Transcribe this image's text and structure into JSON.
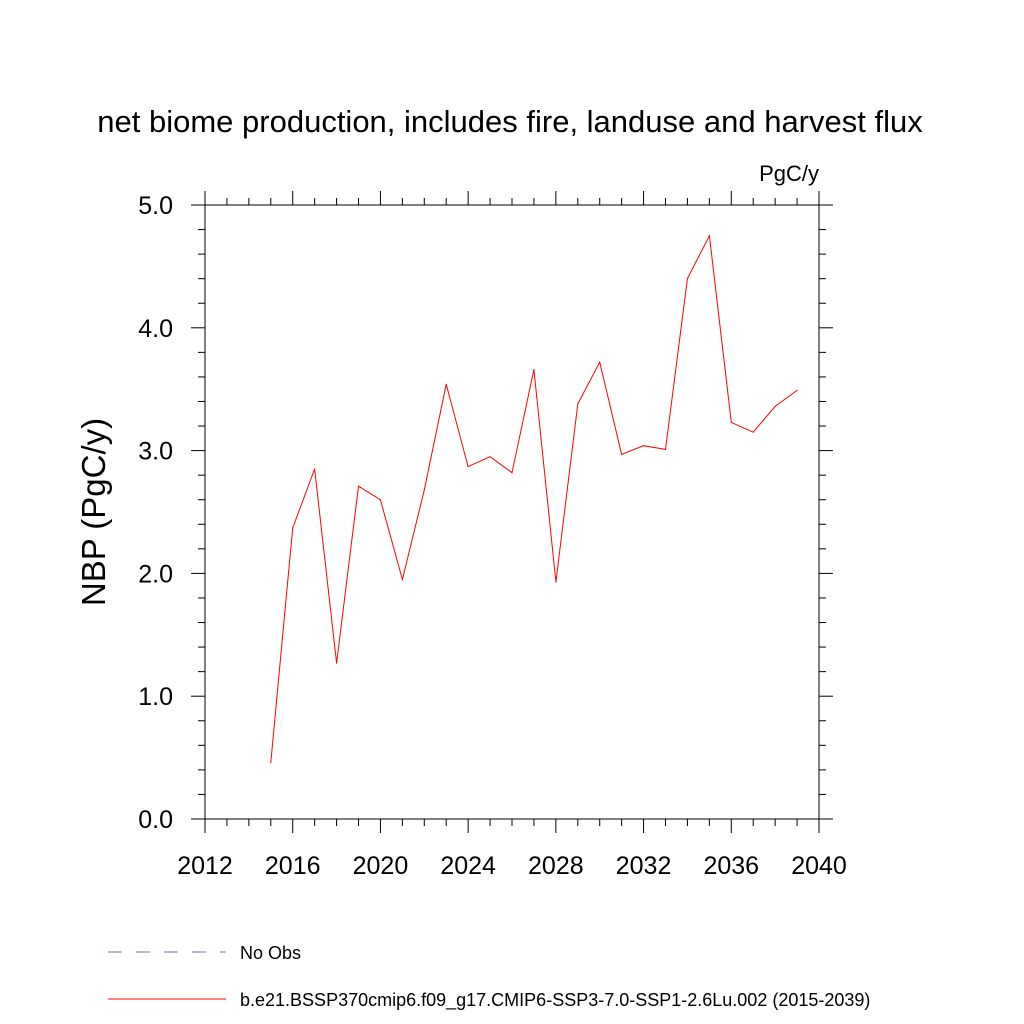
{
  "chart_data": {
    "type": "line",
    "title": "net biome production, includes fire, landuse and harvest flux",
    "units_label": "PgC/y",
    "ylabel": "NBP  (PgC/y)",
    "xlabel": "",
    "xlim": [
      2012,
      2040
    ],
    "ylim": [
      0.0,
      5.0
    ],
    "x_ticks": [
      2012,
      2016,
      2020,
      2024,
      2028,
      2032,
      2036,
      2040
    ],
    "x_tick_labels": [
      "2012",
      "2016",
      "2020",
      "2024",
      "2028",
      "2032",
      "2036",
      "2040"
    ],
    "y_ticks": [
      0.0,
      1.0,
      2.0,
      3.0,
      4.0,
      5.0
    ],
    "y_tick_labels": [
      "0.0",
      "1.0",
      "2.0",
      "3.0",
      "4.0",
      "5.0"
    ],
    "grid": false,
    "legend_placement": "bottom",
    "series": [
      {
        "name": "b.e21.BSSP370cmip6.f09_g17.CMIP6-SSP3-7.0-SSP1-2.6Lu.002 (2015-2039)",
        "color": "#ff0000",
        "style": "solid",
        "x": [
          2015,
          2016,
          2017,
          2018,
          2019,
          2020,
          2021,
          2022,
          2023,
          2024,
          2025,
          2026,
          2027,
          2028,
          2029,
          2030,
          2031,
          2032,
          2033,
          2034,
          2035,
          2036,
          2037,
          2038,
          2039
        ],
        "y": [
          0.46,
          2.37,
          2.85,
          1.27,
          2.71,
          2.6,
          1.95,
          2.68,
          3.54,
          2.87,
          2.95,
          2.82,
          3.66,
          1.93,
          3.38,
          3.72,
          2.97,
          3.04,
          3.01,
          4.4,
          4.75,
          3.23,
          3.15,
          3.36,
          3.49
        ]
      }
    ],
    "legend": [
      {
        "label": "No Obs",
        "color": "#7a6cb0",
        "style": "dashed"
      },
      {
        "label": "b.e21.BSSP370cmip6.f09_g17.CMIP6-SSP3-7.0-SSP1-2.6Lu.002 (2015-2039)",
        "color": "#ff0000",
        "style": "solid"
      }
    ]
  }
}
